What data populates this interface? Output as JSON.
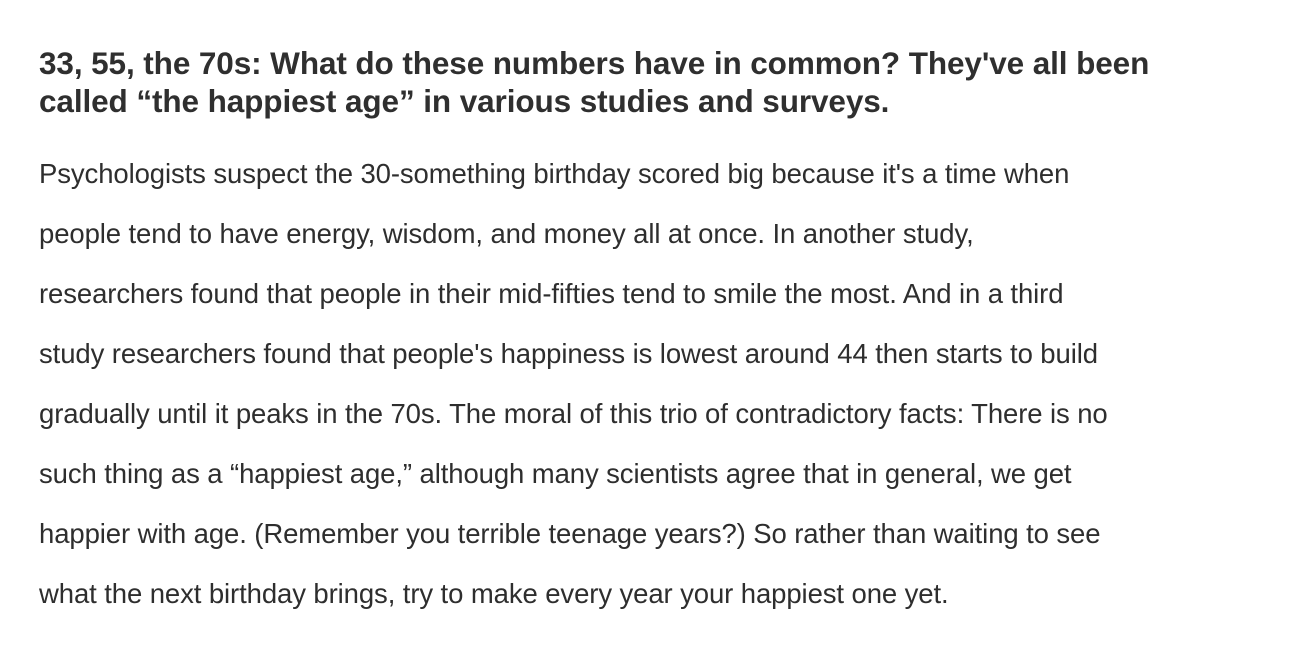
{
  "article": {
    "headline_lines": [
      "33, 55, the 70s: What do these numbers have in common? They've all been",
      "called “the happiest age” in various studies and surveys."
    ],
    "body_lines": [
      "Psychologists suspect the 30-something birthday scored big because it's a time when",
      "people tend to have energy, wisdom, and money all at once. In another study,",
      "researchers found that people in their mid-fifties tend to smile the most. And in a third",
      "study researchers found that people's happiness is lowest around 44 then starts to build",
      "gradually until it peaks in the 70s. The moral of this trio of contradictory facts: There is no",
      "such thing as a “happiest age,” although many scientists agree that in general, we get",
      "happier with age. (Remember you terrible teenage years?) So rather than waiting to see",
      "what the next birthday brings, try to make every year your happiest one yet."
    ]
  }
}
